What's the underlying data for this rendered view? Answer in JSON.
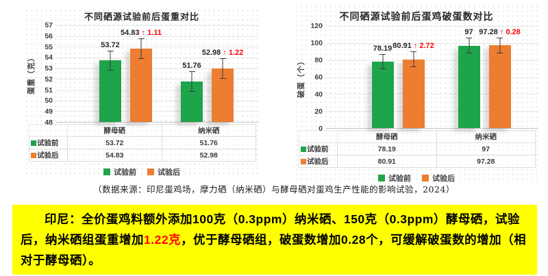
{
  "colors": {
    "series_before": "#1EA44A",
    "series_after": "#ED7D31",
    "annotation_red": "#FF0000",
    "summary_bg": "#FFFF00"
  },
  "chart_data": [
    {
      "type": "bar",
      "title": "不同硒源试验前后蛋重对比",
      "ylabel": "蛋重（克）",
      "ylim": [
        48,
        57
      ],
      "ytick_step": 1,
      "grid": true,
      "legend_position": "bottom",
      "categories": [
        "酵母硒",
        "纳米硒"
      ],
      "series": [
        {
          "name": "试验前",
          "color": "#1EA44A",
          "values": [
            53.72,
            51.76
          ]
        },
        {
          "name": "试验后",
          "color": "#ED7D31",
          "values": [
            54.83,
            52.98
          ]
        }
      ],
      "annotations": [
        "↑ 1.11",
        "↑ 1.22"
      ],
      "error_bar": 0.95
    },
    {
      "type": "bar",
      "title": "不同硒源试验前后蛋鸡破蛋数对比",
      "ylabel": "破蛋（个）",
      "ylim": [
        0,
        120
      ],
      "ytick_step": 20,
      "grid": true,
      "legend_position": "bottom",
      "categories": [
        "酵母硒",
        "纳米硒"
      ],
      "series": [
        {
          "name": "试验前",
          "color": "#1EA44A",
          "values": [
            78.19,
            97
          ]
        },
        {
          "name": "试验后",
          "color": "#ED7D31",
          "values": [
            80.91,
            97.28
          ]
        }
      ],
      "annotations": [
        "↑ 2.72",
        "↑ 0.28"
      ],
      "error_bar": 9
    }
  ],
  "caption": "（数据来源：印尼蛋鸡场，摩力硒（纳米硒）与酵母硒对蛋鸡生产性能的影响试验，2024）",
  "summary": {
    "segments": [
      {
        "text": "印尼：全价蛋鸡料额外添加100克（0.3ppm）纳米硒、150克（0.3ppm）酵母硒，试验后，纳米硒组蛋重增加",
        "color": "#000000"
      },
      {
        "text": "1.22克",
        "color": "#FF0000"
      },
      {
        "text": "，优于酵母硒组，破蛋数增加0.28个，可缓解破蛋数的增加（相对于酵母硒）。",
        "color": "#000000"
      }
    ]
  }
}
